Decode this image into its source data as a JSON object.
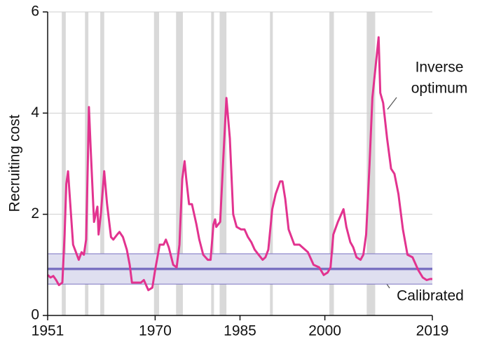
{
  "chart_data": {
    "type": "line",
    "ylabel": "Recruiting cost",
    "xlim": [
      1951,
      2019
    ],
    "xticks": [
      1951,
      1970,
      1985,
      2000,
      2019
    ],
    "ylim": [
      0,
      6
    ],
    "yticks": [
      0,
      2,
      4,
      6
    ],
    "grid": true,
    "recessions": [
      [
        1953.5,
        1954.2
      ],
      [
        1957.6,
        1958.2
      ],
      [
        1960.3,
        1961.0
      ],
      [
        1969.8,
        1970.7
      ],
      [
        1973.7,
        1974.9
      ],
      [
        1979.9,
        1980.4
      ],
      [
        1981.4,
        1982.6
      ],
      [
        1990.3,
        1990.8
      ],
      [
        2000.8,
        2001.6
      ],
      [
        2007.4,
        2008.9
      ]
    ],
    "recession_color": "#d9d9d9",
    "calibrated": {
      "label": "Calibrated",
      "value": 0.92,
      "band": [
        0.62,
        1.22
      ],
      "color": "#7a72c2",
      "band_color": "#dfdff0"
    },
    "series": [
      {
        "label_lines": [
          "Inverse",
          "optimum"
        ],
        "color": "#e2338f",
        "x": [
          1951.0,
          1951.5,
          1952.0,
          1952.5,
          1953.0,
          1953.6,
          1954.0,
          1954.3,
          1954.6,
          1955.0,
          1955.5,
          1956.0,
          1956.5,
          1957.0,
          1957.4,
          1957.8,
          1958.1,
          1958.3,
          1958.6,
          1959.2,
          1959.8,
          1960.0,
          1960.4,
          1961.0,
          1961.5,
          1962.2,
          1962.6,
          1963.3,
          1963.7,
          1964.3,
          1965.0,
          1965.5,
          1965.9,
          1967.5,
          1968.0,
          1968.8,
          1969.5,
          1970.0,
          1970.8,
          1971.5,
          1971.9,
          1972.4,
          1973.2,
          1973.8,
          1974.3,
          1974.8,
          1975.2,
          1975.5,
          1976.0,
          1976.5,
          1977.3,
          1977.8,
          1978.5,
          1979.3,
          1979.8,
          1980.3,
          1980.6,
          1980.8,
          1981.5,
          1982.0,
          1982.6,
          1983.2,
          1983.8,
          1984.4,
          1985.2,
          1985.8,
          1986.4,
          1987.0,
          1987.6,
          1988.3,
          1989.0,
          1989.5,
          1990.0,
          1990.7,
          1991.3,
          1992.1,
          1992.5,
          1993.0,
          1993.6,
          1994.6,
          1995.5,
          1997.0,
          1998.0,
          1999.0,
          1999.8,
          2000.5,
          2001.0,
          2001.5,
          2002.3,
          2003.3,
          2003.8,
          2004.5,
          2005.0,
          2005.6,
          2006.3,
          2006.8,
          2007.3,
          2007.9,
          2008.4,
          2009.5,
          2009.8,
          2010.3,
          2011.0,
          2011.7,
          2012.3,
          2013.0,
          2013.8,
          2014.6,
          2015.5,
          2016.5,
          2017.3,
          2018.0,
          2018.6,
          2019.0
        ],
        "values": [
          0.8,
          0.75,
          0.78,
          0.7,
          0.6,
          0.65,
          1.6,
          2.6,
          2.85,
          2.2,
          1.4,
          1.25,
          1.1,
          1.25,
          1.2,
          1.5,
          3.0,
          4.12,
          3.3,
          1.85,
          2.15,
          1.6,
          2.0,
          2.85,
          2.2,
          1.55,
          1.5,
          1.6,
          1.65,
          1.55,
          1.3,
          1.0,
          0.65,
          0.65,
          0.7,
          0.5,
          0.55,
          0.9,
          1.4,
          1.4,
          1.5,
          1.35,
          1.0,
          0.95,
          1.4,
          2.7,
          3.05,
          2.7,
          2.2,
          2.2,
          1.8,
          1.5,
          1.2,
          1.1,
          1.1,
          1.8,
          1.9,
          1.75,
          1.85,
          3.0,
          4.3,
          3.5,
          2.0,
          1.75,
          1.7,
          1.7,
          1.55,
          1.45,
          1.3,
          1.2,
          1.1,
          1.15,
          1.3,
          2.1,
          2.4,
          2.65,
          2.65,
          2.3,
          1.7,
          1.4,
          1.4,
          1.25,
          1.0,
          0.95,
          0.8,
          0.85,
          0.95,
          1.6,
          1.85,
          2.1,
          1.75,
          1.45,
          1.35,
          1.15,
          1.1,
          1.2,
          1.6,
          3.0,
          4.3,
          5.5,
          4.4,
          4.2,
          3.5,
          2.9,
          2.8,
          2.4,
          1.7,
          1.2,
          1.15,
          0.9,
          0.75,
          0.7,
          0.72,
          0.72
        ]
      }
    ]
  }
}
